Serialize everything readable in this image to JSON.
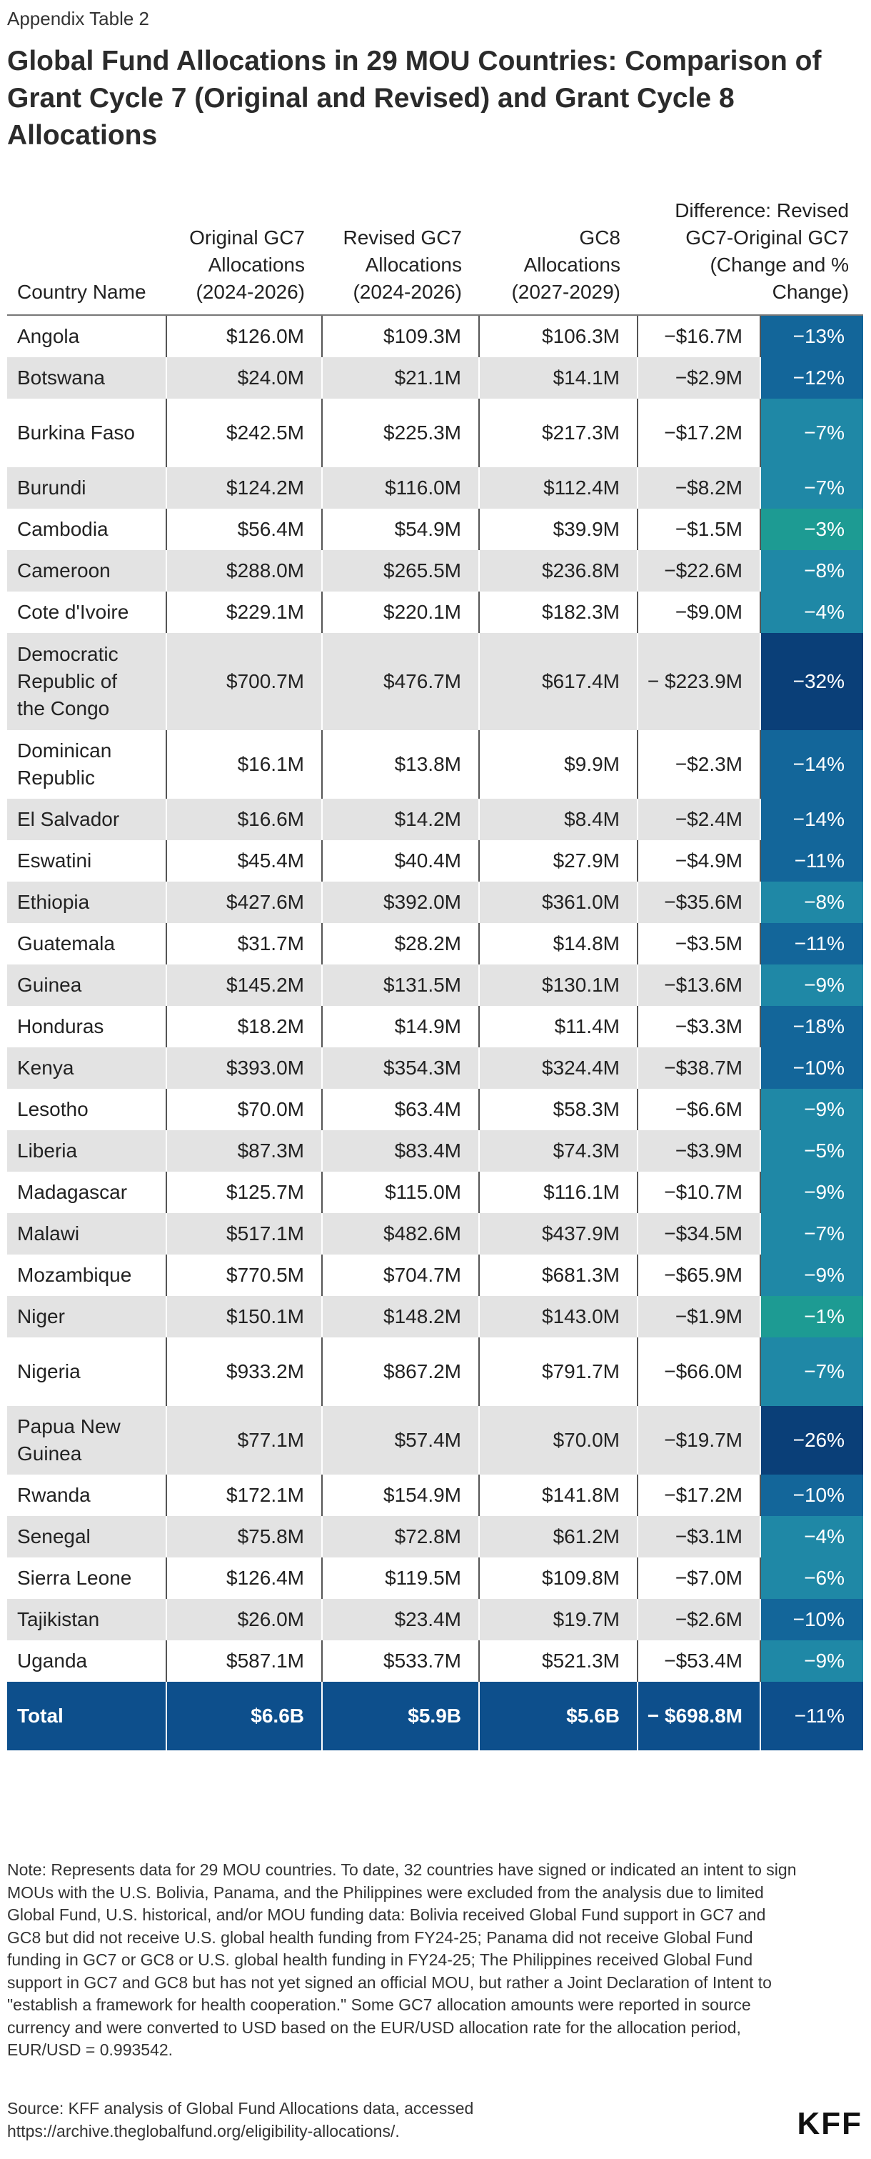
{
  "eyebrow": "Appendix Table 2",
  "title": "Global Fund Allocations in 29 MOU Countries: Comparison of Grant Cycle 7 (Original and Revised) and Grant Cycle 8 Allocations",
  "headers": {
    "country": "Country Name",
    "original": "Original GC7 Allocations (2024-2026)",
    "revised": "Revised GC7 Allocations (2024-2026)",
    "gc8": "GC8 Allocations (2027-2029)",
    "difference": "Difference: Revised GC7-Original GC7 (Change and % Change)"
  },
  "colors": {
    "pct_light": "#1f88a6",
    "pct_mid": "#13669a",
    "pct_dark": "#0a3f78",
    "pct_teal": "#1d9b93",
    "total_bg": "#0d4f8c",
    "row_alt": "#e3e3e3"
  },
  "rows": [
    {
      "country": "Angola",
      "original": "$126.0M",
      "revised": "$109.3M",
      "gc8": "$106.3M",
      "diff": "−$16.7M",
      "pct": "−13%",
      "shade": "pct_mid"
    },
    {
      "country": "Botswana",
      "original": "$24.0M",
      "revised": "$21.1M",
      "gc8": "$14.1M",
      "diff": "−$2.9M",
      "pct": "−12%",
      "shade": "pct_mid"
    },
    {
      "country": "Burkina Faso",
      "original": "$242.5M",
      "revised": "$225.3M",
      "gc8": "$217.3M",
      "diff": "−$17.2M",
      "pct": "−7%",
      "shade": "pct_light",
      "tall": true
    },
    {
      "country": "Burundi",
      "original": "$124.2M",
      "revised": "$116.0M",
      "gc8": "$112.4M",
      "diff": "−$8.2M",
      "pct": "−7%",
      "shade": "pct_light"
    },
    {
      "country": "Cambodia",
      "original": "$56.4M",
      "revised": "$54.9M",
      "gc8": "$39.9M",
      "diff": "−$1.5M",
      "pct": "−3%",
      "shade": "pct_teal"
    },
    {
      "country": "Cameroon",
      "original": "$288.0M",
      "revised": "$265.5M",
      "gc8": "$236.8M",
      "diff": "−$22.6M",
      "pct": "−8%",
      "shade": "pct_light"
    },
    {
      "country": "Cote d'Ivoire",
      "original": "$229.1M",
      "revised": "$220.1M",
      "gc8": "$182.3M",
      "diff": "−$9.0M",
      "pct": "−4%",
      "shade": "pct_light"
    },
    {
      "country": "Democratic Republic of the Congo",
      "original": "$700.7M",
      "revised": "$476.7M",
      "gc8": "$617.4M",
      "diff": "− $223.9M",
      "pct": "−32%",
      "shade": "pct_dark",
      "xtall": true
    },
    {
      "country": "Dominican Republic",
      "original": "$16.1M",
      "revised": "$13.8M",
      "gc8": "$9.9M",
      "diff": "−$2.3M",
      "pct": "−14%",
      "shade": "pct_mid",
      "tall": true
    },
    {
      "country": "El Salvador",
      "original": "$16.6M",
      "revised": "$14.2M",
      "gc8": "$8.4M",
      "diff": "−$2.4M",
      "pct": "−14%",
      "shade": "pct_mid"
    },
    {
      "country": "Eswatini",
      "original": "$45.4M",
      "revised": "$40.4M",
      "gc8": "$27.9M",
      "diff": "−$4.9M",
      "pct": "−11%",
      "shade": "pct_mid"
    },
    {
      "country": "Ethiopia",
      "original": "$427.6M",
      "revised": "$392.0M",
      "gc8": "$361.0M",
      "diff": "−$35.6M",
      "pct": "−8%",
      "shade": "pct_light"
    },
    {
      "country": "Guatemala",
      "original": "$31.7M",
      "revised": "$28.2M",
      "gc8": "$14.8M",
      "diff": "−$3.5M",
      "pct": "−11%",
      "shade": "pct_mid"
    },
    {
      "country": "Guinea",
      "original": "$145.2M",
      "revised": "$131.5M",
      "gc8": "$130.1M",
      "diff": "−$13.6M",
      "pct": "−9%",
      "shade": "pct_light"
    },
    {
      "country": "Honduras",
      "original": "$18.2M",
      "revised": "$14.9M",
      "gc8": "$11.4M",
      "diff": "−$3.3M",
      "pct": "−18%",
      "shade": "pct_mid"
    },
    {
      "country": "Kenya",
      "original": "$393.0M",
      "revised": "$354.3M",
      "gc8": "$324.4M",
      "diff": "−$38.7M",
      "pct": "−10%",
      "shade": "pct_mid"
    },
    {
      "country": "Lesotho",
      "original": "$70.0M",
      "revised": "$63.4M",
      "gc8": "$58.3M",
      "diff": "−$6.6M",
      "pct": "−9%",
      "shade": "pct_light"
    },
    {
      "country": "Liberia",
      "original": "$87.3M",
      "revised": "$83.4M",
      "gc8": "$74.3M",
      "diff": "−$3.9M",
      "pct": "−5%",
      "shade": "pct_light"
    },
    {
      "country": "Madagascar",
      "original": "$125.7M",
      "revised": "$115.0M",
      "gc8": "$116.1M",
      "diff": "−$10.7M",
      "pct": "−9%",
      "shade": "pct_light"
    },
    {
      "country": "Malawi",
      "original": "$517.1M",
      "revised": "$482.6M",
      "gc8": "$437.9M",
      "diff": "−$34.5M",
      "pct": "−7%",
      "shade": "pct_light"
    },
    {
      "country": "Mozambique",
      "original": "$770.5M",
      "revised": "$704.7M",
      "gc8": "$681.3M",
      "diff": "−$65.9M",
      "pct": "−9%",
      "shade": "pct_light"
    },
    {
      "country": "Niger",
      "original": "$150.1M",
      "revised": "$148.2M",
      "gc8": "$143.0M",
      "diff": "−$1.9M",
      "pct": "−1%",
      "shade": "pct_teal"
    },
    {
      "country": "Nigeria",
      "original": "$933.2M",
      "revised": "$867.2M",
      "gc8": "$791.7M",
      "diff": "−$66.0M",
      "pct": "−7%",
      "shade": "pct_light",
      "tall": true
    },
    {
      "country": "Papua New Guinea",
      "original": "$77.1M",
      "revised": "$57.4M",
      "gc8": "$70.0M",
      "diff": "−$19.7M",
      "pct": "−26%",
      "shade": "pct_dark",
      "tall": true
    },
    {
      "country": "Rwanda",
      "original": "$172.1M",
      "revised": "$154.9M",
      "gc8": "$141.8M",
      "diff": "−$17.2M",
      "pct": "−10%",
      "shade": "pct_mid"
    },
    {
      "country": "Senegal",
      "original": "$75.8M",
      "revised": "$72.8M",
      "gc8": "$61.2M",
      "diff": "−$3.1M",
      "pct": "−4%",
      "shade": "pct_light"
    },
    {
      "country": "Sierra Leone",
      "original": "$126.4M",
      "revised": "$119.5M",
      "gc8": "$109.8M",
      "diff": "−$7.0M",
      "pct": "−6%",
      "shade": "pct_light"
    },
    {
      "country": "Tajikistan",
      "original": "$26.0M",
      "revised": "$23.4M",
      "gc8": "$19.7M",
      "diff": "−$2.6M",
      "pct": "−10%",
      "shade": "pct_mid"
    },
    {
      "country": "Uganda",
      "original": "$587.1M",
      "revised": "$533.7M",
      "gc8": "$521.3M",
      "diff": "−$53.4M",
      "pct": "−9%",
      "shade": "pct_light"
    }
  ],
  "total": {
    "country": "Total",
    "original": "$6.6B",
    "revised": "$5.9B",
    "gc8": "$5.6B",
    "diff": "− $698.8M",
    "pct": "−11%"
  },
  "note": "Note: Represents data for 29 MOU countries. To date, 32 countries have signed or indicated an intent to sign MOUs with the U.S. Bolivia, Panama, and the Philippines were excluded from the analysis due to limited Global Fund, U.S. historical, and/or MOU funding data: Bolivia received Global Fund support in GC7 and GC8 but did not receive U.S. global health funding from FY24-25; Panama did not receive Global Fund funding in GC7 or GC8 or U.S. global health funding in FY24-25; The Philippines received Global Fund support in GC7 and GC8 but has not yet signed an official MOU, but rather a Joint Declaration of Intent to \"establish a framework for health cooperation.\" Some GC7 allocation amounts were reported in source currency and were converted to USD based on the EUR/USD allocation rate for the allocation period, EUR/USD = 0.993542.",
  "source": "Source: KFF analysis of Global Fund Allocations data, accessed https://archive.theglobalfund.org/eligibility-allocations/.",
  "logo": "KFF"
}
